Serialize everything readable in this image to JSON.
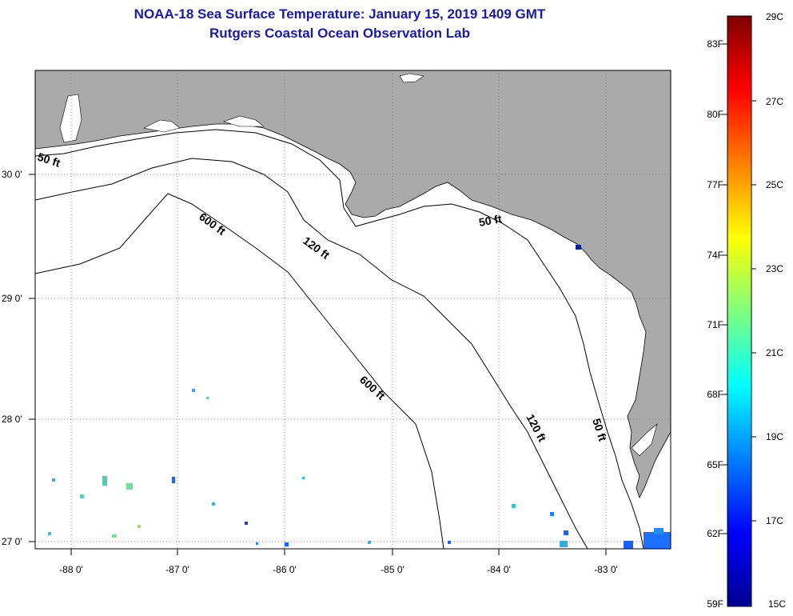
{
  "header": {
    "title": "NOAA-18 Sea Surface Temperature:  January 15, 2019 1409 GMT",
    "subtitle": "Rutgers Coastal Ocean Observation Lab"
  },
  "map": {
    "lon_labels": [
      "-88 0'",
      "-87 0'",
      "-86 0'",
      "-85 0'",
      "-84 0'",
      "-83 0'"
    ],
    "lat_labels": [
      "30 0'",
      "29 0'",
      "28 0'",
      "27 0'"
    ],
    "depth_labels": [
      "50 ft",
      "600 ft",
      "120 ft",
      "50 ft",
      "600 ft",
      "120 ft",
      "50 ft"
    ],
    "colors": {
      "land": "#aaaaaa",
      "ocean": "#ffffff",
      "contour": "#000000"
    }
  },
  "colorbar": {
    "f_labels": [
      "83F",
      "80F",
      "77F",
      "74F",
      "71F",
      "68F",
      "65F",
      "62F",
      "59F"
    ],
    "c_labels": [
      "29C",
      "27C",
      "25C",
      "23C",
      "21C",
      "19C",
      "17C",
      "15C"
    ],
    "range_c": [
      15,
      29
    ],
    "colormap": "jet"
  }
}
